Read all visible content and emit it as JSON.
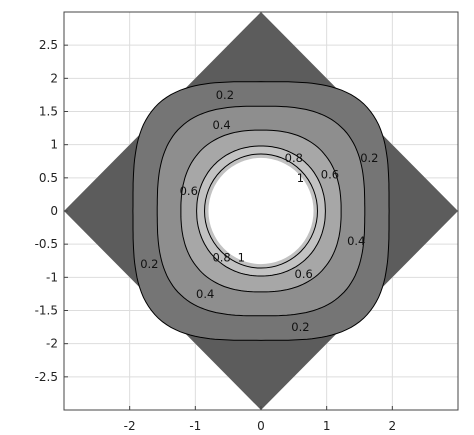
{
  "chart_data": {
    "type": "contour",
    "title": "",
    "xlabel": "",
    "ylabel": "",
    "xlim": [
      -3,
      3
    ],
    "ylim": [
      -3,
      3
    ],
    "grid": true,
    "legend": "none",
    "x_ticks": [
      -2,
      -1,
      0,
      1,
      2
    ],
    "y_ticks": [
      2.5,
      2,
      1.5,
      1,
      0.5,
      0,
      -0.5,
      -1,
      -1.5,
      -2,
      -2.5
    ],
    "x_tick_labels": [
      "-2",
      "-1",
      "0",
      "1",
      "2"
    ],
    "y_tick_labels": [
      "2.5",
      "2",
      "1.5",
      "1",
      "0.5",
      "0",
      "-0.5",
      "-1",
      "-1.5",
      "-2",
      "-2.5"
    ],
    "domain": {
      "shape": "square rotated 45 degrees",
      "vertices": [
        [
          0,
          3
        ],
        [
          3,
          0
        ],
        [
          0,
          -3
        ],
        [
          -3,
          0
        ]
      ],
      "hole": {
        "shape": "circle",
        "center": [
          0,
          0
        ],
        "radius": 0.8
      }
    },
    "contour_levels": [
      0.2,
      0.4,
      0.6,
      0.8,
      1
    ],
    "labels": [
      {
        "text": "0.2",
        "x": -0.55,
        "y": 1.75
      },
      {
        "text": "0.2",
        "x": 1.65,
        "y": 0.8
      },
      {
        "text": "0.2",
        "x": -1.7,
        "y": -0.8
      },
      {
        "text": "0.2",
        "x": 0.6,
        "y": -1.75
      },
      {
        "text": "0.4",
        "x": -0.6,
        "y": 1.3
      },
      {
        "text": "0.4",
        "x": 1.45,
        "y": -0.45
      },
      {
        "text": "0.4",
        "x": -0.85,
        "y": -1.25
      },
      {
        "text": "0.6",
        "x": -1.1,
        "y": 0.3
      },
      {
        "text": "0.6",
        "x": 1.05,
        "y": 0.55
      },
      {
        "text": "0.6",
        "x": 0.65,
        "y": -0.95
      },
      {
        "text": "0.8",
        "x": 0.5,
        "y": 0.8
      },
      {
        "text": "0.8",
        "x": -0.6,
        "y": -0.7
      },
      {
        "text": "1",
        "x": 0.6,
        "y": 0.5
      },
      {
        "text": "1",
        "x": -0.3,
        "y": -0.7
      }
    ],
    "colors": {
      "band_0_02": "#5c5c5c",
      "band_02_04": "#757575",
      "band_04_06": "#8e8e8e",
      "band_06_08": "#a7a7a7",
      "band_08_1": "#c2c2c2",
      "hole": "#ffffff",
      "contour_line": "#000000",
      "grid": "#dddddd",
      "axes": "#444444"
    }
  }
}
